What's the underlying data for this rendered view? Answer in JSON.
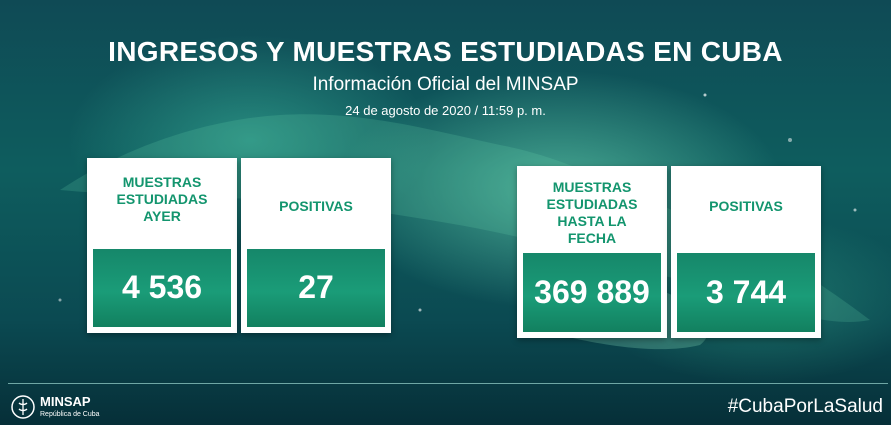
{
  "header": {
    "title": "INGRESOS Y MUESTRAS ESTUDIADAS EN CUBA",
    "subtitle": "Información Oficial del MINSAP",
    "date": "24  de agosto de 2020 / 11:59 p. m."
  },
  "cards": [
    {
      "label": "MUESTRAS ESTUDIADAS AYER",
      "value": "4 536"
    },
    {
      "label": "POSITIVAS",
      "value": "27"
    },
    {
      "label": "MUESTRAS ESTUDIADAS HASTA LA FECHA",
      "value": "369 889"
    },
    {
      "label": "POSITIVAS",
      "value": "3 744"
    }
  ],
  "footer": {
    "logo_name": "MINSAP",
    "logo_sub": "República de Cuba",
    "hashtag": "#CubaPorLaSalud"
  },
  "colors": {
    "card_label": "#13956e",
    "card_value_bg": "#1a9c78",
    "background": "#0e5d5e"
  }
}
